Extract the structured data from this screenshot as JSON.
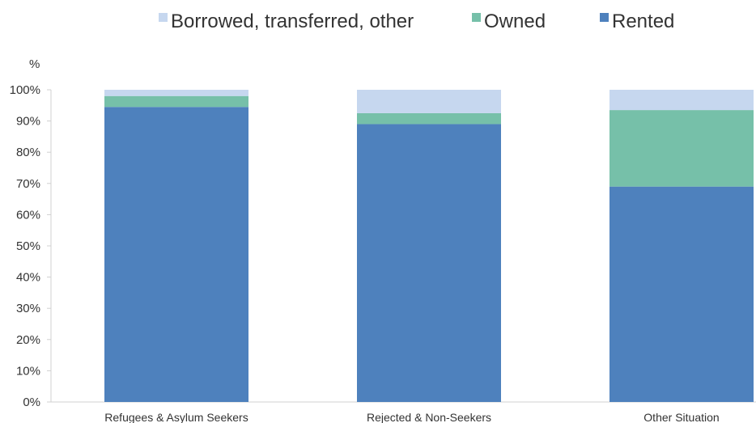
{
  "chart_data": {
    "type": "bar",
    "stacked": true,
    "ylabel": "%",
    "ylim": [
      0,
      100
    ],
    "yticks": [
      "0%",
      "10%",
      "20%",
      "30%",
      "40%",
      "50%",
      "60%",
      "70%",
      "80%",
      "90%",
      "100%"
    ],
    "grid": false,
    "legend_position": "top",
    "categories": [
      "Refugees & Asylum Seekers",
      "Rejected & Non-Seekers",
      "Other Situation"
    ],
    "series": [
      {
        "name": "Rented",
        "color": "#4e81bd",
        "values": [
          94.5,
          89,
          69
        ]
      },
      {
        "name": "Owned",
        "color": "#76c0a9",
        "values": [
          3.5,
          3.5,
          24.5
        ]
      },
      {
        "name": "Borrowed, transferred, other",
        "color": "#c6d7ef",
        "values": [
          2,
          7.5,
          6.5
        ]
      }
    ],
    "legend_order": [
      "Borrowed, transferred, other",
      "Owned",
      "Rented"
    ]
  }
}
